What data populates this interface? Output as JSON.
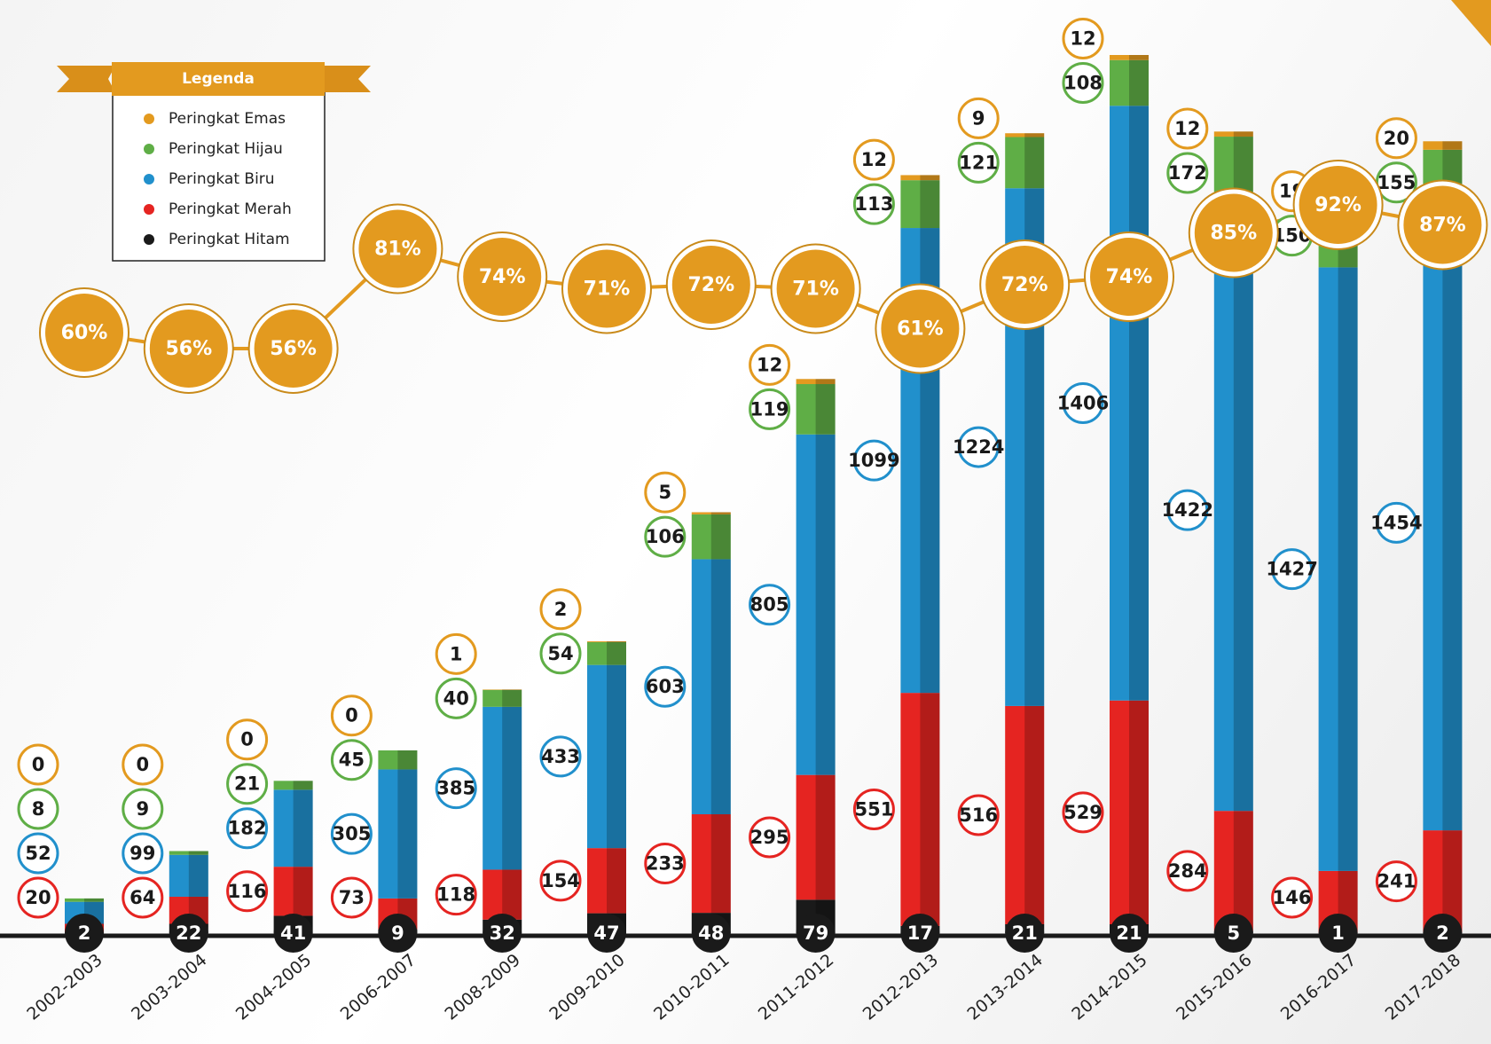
{
  "chart_data": {
    "type": "bar",
    "legend_title": "Legenda",
    "categories": [
      "2002-2003",
      "2003-2004",
      "2004-2005",
      "2006-2007",
      "2008-2009",
      "2009-2010",
      "2010-2011",
      "2011-2012",
      "2012-2013",
      "2013-2014",
      "2014-2015",
      "2015-2016",
      "2016-2017",
      "2017-2018"
    ],
    "series": [
      {
        "name": "Peringkat Emas",
        "color": "#e39a1f",
        "values": [
          0,
          0,
          0,
          0,
          1,
          2,
          5,
          12,
          12,
          9,
          12,
          12,
          19,
          20
        ]
      },
      {
        "name": "Peringkat Hijau",
        "color": "#5fae46",
        "values": [
          8,
          9,
          21,
          45,
          40,
          54,
          106,
          119,
          113,
          121,
          108,
          172,
          150,
          155
        ]
      },
      {
        "name": "Peringkat Biru",
        "color": "#2190cc",
        "values": [
          52,
          99,
          182,
          305,
          385,
          433,
          603,
          805,
          1099,
          1224,
          1406,
          1422,
          1427,
          1454
        ]
      },
      {
        "name": "Peringkat Merah",
        "color": "#e52421",
        "values": [
          20,
          64,
          116,
          73,
          118,
          154,
          233,
          295,
          551,
          516,
          529,
          284,
          146,
          241
        ]
      },
      {
        "name": "Peringkat Hitam",
        "color": "#1a1a1a",
        "values": [
          2,
          22,
          41,
          9,
          32,
          47,
          48,
          79,
          17,
          21,
          21,
          5,
          1,
          2
        ]
      }
    ],
    "line": {
      "color": "#e39a1f",
      "values": [
        60,
        56,
        56,
        81,
        74,
        71,
        72,
        71,
        61,
        72,
        74,
        85,
        92,
        87
      ],
      "value_labels": [
        "60%",
        "56%",
        "56%",
        "81%",
        "74%",
        "71%",
        "72%",
        "71%",
        "61%",
        "72%",
        "74%",
        "85%",
        "92%",
        "87%"
      ]
    }
  }
}
